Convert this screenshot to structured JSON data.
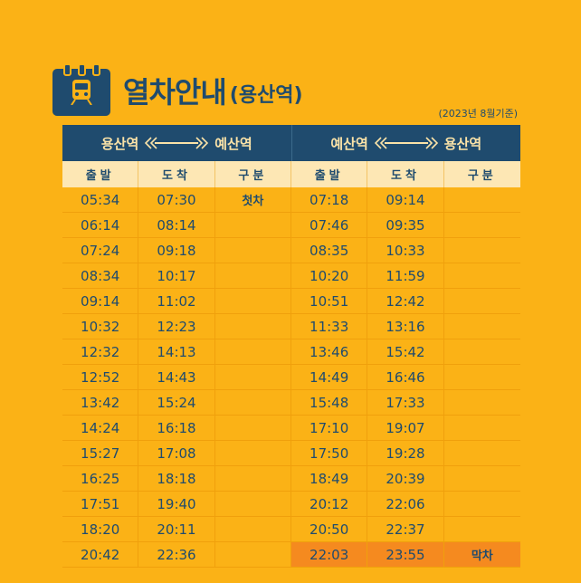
{
  "header": {
    "icon": "train-calendar-icon",
    "title": "열차안내",
    "subtitle": "(용산역)",
    "basis": "(2023년 8월기준)"
  },
  "directions": [
    {
      "from": "용산역",
      "to": "예산역"
    },
    {
      "from": "예산역",
      "to": "용산역"
    }
  ],
  "columns": [
    "출발",
    "도착",
    "구분",
    "출발",
    "도착",
    "구분"
  ],
  "rows": [
    [
      "05:34",
      "07:30",
      "첫차",
      "07:18",
      "09:14",
      ""
    ],
    [
      "06:14",
      "08:14",
      "",
      "07:46",
      "09:35",
      ""
    ],
    [
      "07:24",
      "09:18",
      "",
      "08:35",
      "10:33",
      ""
    ],
    [
      "08:34",
      "10:17",
      "",
      "10:20",
      "11:59",
      ""
    ],
    [
      "09:14",
      "11:02",
      "",
      "10:51",
      "12:42",
      ""
    ],
    [
      "10:32",
      "12:23",
      "",
      "11:33",
      "13:16",
      ""
    ],
    [
      "12:32",
      "14:13",
      "",
      "13:46",
      "15:42",
      ""
    ],
    [
      "12:52",
      "14:43",
      "",
      "14:49",
      "16:46",
      ""
    ],
    [
      "13:42",
      "15:24",
      "",
      "15:48",
      "17:33",
      ""
    ],
    [
      "14:24",
      "16:18",
      "",
      "17:10",
      "19:07",
      ""
    ],
    [
      "15:27",
      "17:08",
      "",
      "17:50",
      "19:28",
      ""
    ],
    [
      "16:25",
      "18:18",
      "",
      "18:49",
      "20:39",
      ""
    ],
    [
      "17:51",
      "19:40",
      "",
      "20:12",
      "22:06",
      ""
    ],
    [
      "18:20",
      "20:11",
      "",
      "20:50",
      "22:37",
      ""
    ],
    [
      "20:42",
      "22:36",
      "",
      "22:03",
      "23:55",
      "막차"
    ]
  ],
  "colors": {
    "background": "#fbb216",
    "navy": "#1f4b6e",
    "header_row": "#fde7b4",
    "last_train_highlight": "#f58a1f"
  }
}
